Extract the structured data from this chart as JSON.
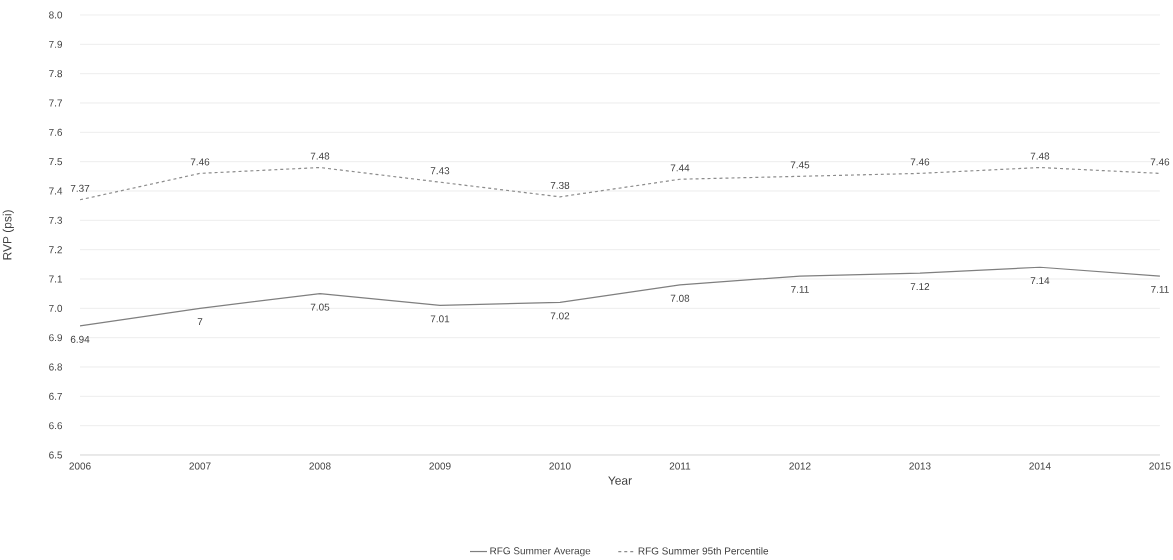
{
  "chart_data": {
    "type": "line",
    "xlabel": "Year",
    "ylabel": "RVP (psi)",
    "x": [
      2006,
      2007,
      2008,
      2009,
      2010,
      2011,
      2012,
      2013,
      2014,
      2015
    ],
    "series": [
      {
        "name": "RFG Summer Average",
        "color": "#7f7f7f",
        "line_style": "solid",
        "values": [
          6.94,
          7,
          7.05,
          7.01,
          7.02,
          7.08,
          7.11,
          7.12,
          7.14,
          7.11
        ]
      },
      {
        "name": "RFG Summer 95th Percentile",
        "color": "#8c8c8c",
        "line_style": "dashed",
        "values": [
          7.37,
          7.46,
          7.48,
          7.43,
          7.38,
          7.44,
          7.45,
          7.46,
          7.48,
          7.46
        ]
      }
    ],
    "xlim": [
      2006,
      2015
    ],
    "xticks": [
      2006,
      2007,
      2008,
      2009,
      2010,
      2011,
      2012,
      2013,
      2014,
      2015
    ],
    "ylim": [
      6.5,
      8.0
    ],
    "yticks": [
      6.5,
      6.6,
      6.7,
      6.8,
      6.9,
      {
        "value": 7.0,
        "label": "7.0"
      },
      7.1,
      7.2,
      7.3,
      7.4,
      7.5,
      7.6,
      7.7,
      7.8,
      7.9,
      {
        "value": 8.0,
        "label": "8.0"
      }
    ],
    "grid": "y",
    "legend": "bottom",
    "marker": "none",
    "data_labels": true
  }
}
